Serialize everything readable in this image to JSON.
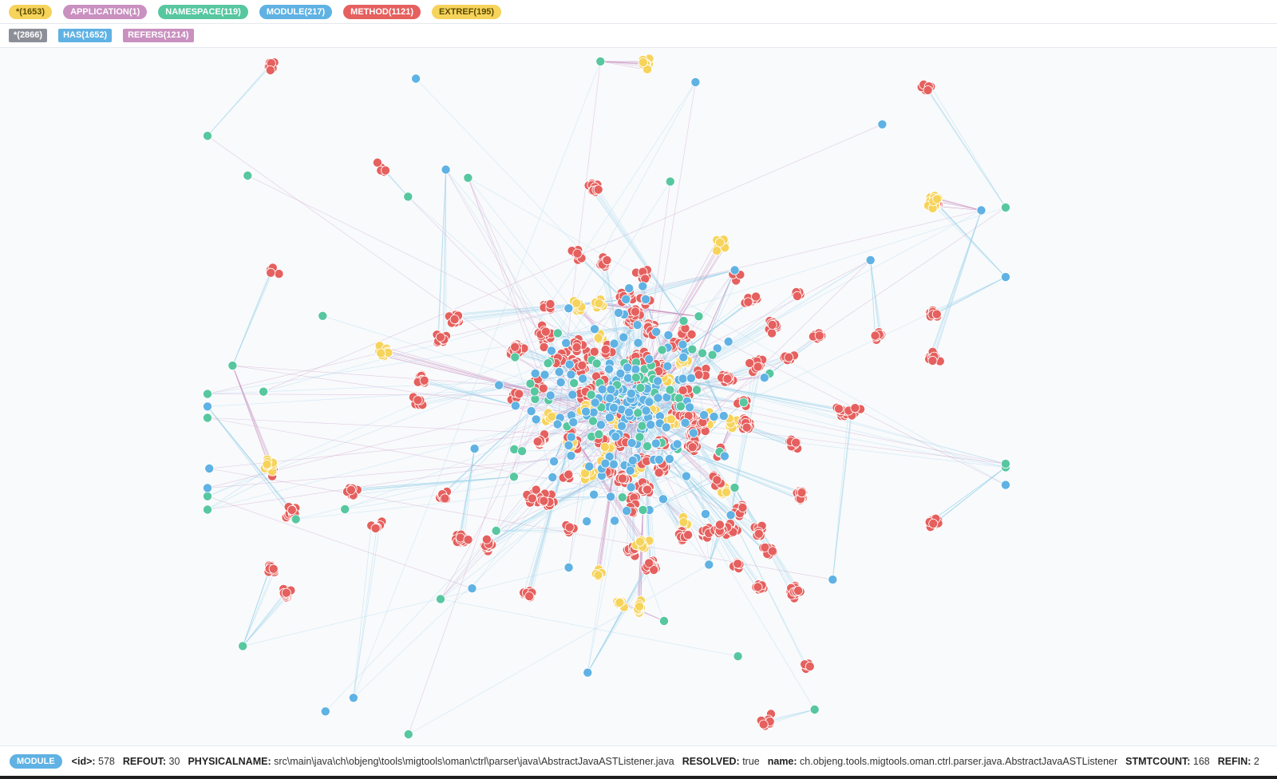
{
  "labels": [
    {
      "text": "*(1653)",
      "color": "#f6d35b",
      "textColor": "#5a4a00"
    },
    {
      "text": "APPLICATION(1)",
      "color": "#c990c0",
      "textColor": "#ffffff"
    },
    {
      "text": "NAMESPACE(119)",
      "color": "#57c7a0",
      "textColor": "#ffffff"
    },
    {
      "text": "MODULE(217)",
      "color": "#5fb2e3",
      "textColor": "#ffffff"
    },
    {
      "text": "METHOD(1121)",
      "color": "#e5605e",
      "textColor": "#ffffff"
    },
    {
      "text": "EXTREF(195)",
      "color": "#f6d35b",
      "textColor": "#5a4a00"
    }
  ],
  "relationships": [
    {
      "text": "*(2866)",
      "color": "#8c8f98"
    },
    {
      "text": "HAS(1652)",
      "color": "#5fb2e3"
    },
    {
      "text": "REFERS(1214)",
      "color": "#c990c0"
    }
  ],
  "selected": {
    "badge": "MODULE",
    "badge_color": "#5fb2e3",
    "properties": [
      {
        "key": "<id>:",
        "value": "578"
      },
      {
        "key": "REFOUT:",
        "value": "30"
      },
      {
        "key": "PHYSICALNAME:",
        "value": "src\\main\\java\\ch\\objeng\\tools\\migtools\\oman\\ctrl\\parser\\java\\AbstractJavaASTListener.java"
      },
      {
        "key": "RESOLVED:",
        "value": "true"
      },
      {
        "key": "name:",
        "value": "ch.objeng.tools.migtools.oman.ctrl.parser.java.AbstractJavaASTListener"
      },
      {
        "key": "STMTCOUNT:",
        "value": "168"
      },
      {
        "key": "REFIN:",
        "value": "2"
      }
    ]
  },
  "graph_colors": {
    "method": "#e5605e",
    "module": "#5fb2e3",
    "namespace": "#57c7a0",
    "extref": "#f6d35b",
    "has_edge": "#9fd3ea",
    "refers_edge": "#c990c0"
  }
}
